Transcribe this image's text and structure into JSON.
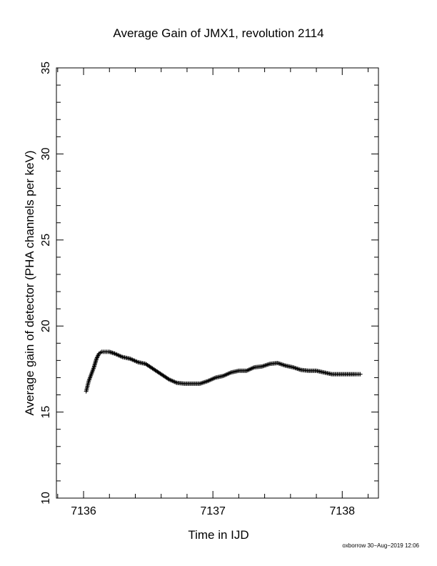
{
  "chart_data": {
    "type": "scatter",
    "title": "Average Gain of JMX1, revolution 2114",
    "xlabel": "Time in IJD",
    "ylabel": "Average gain of detector (PHA channels per keV)",
    "xlim": [
      7135.79,
      7138.28
    ],
    "ylim": [
      10,
      35
    ],
    "x_ticks": [
      "7136",
      "7137",
      "7138"
    ],
    "y_ticks": [
      "10",
      "15",
      "20",
      "25",
      "30",
      "35"
    ],
    "marker": "plus",
    "marker_color": "#000000",
    "grid": false,
    "x": [
      7136.02,
      7136.03,
      7136.04,
      7136.05,
      7136.06,
      7136.07,
      7136.08,
      7136.1,
      7136.12,
      7136.14,
      7136.16,
      7136.18,
      7136.2,
      7136.24,
      7136.3,
      7136.36,
      7136.42,
      7136.48,
      7136.54,
      7136.6,
      7136.66,
      7136.72,
      7136.78,
      7136.84,
      7136.9,
      7136.96,
      7137.02,
      7137.08,
      7137.14,
      7137.2,
      7137.26,
      7137.32,
      7137.38,
      7137.44,
      7137.5,
      7137.56,
      7137.62,
      7137.68,
      7137.74,
      7137.8,
      7137.86,
      7137.92,
      7137.98,
      7138.04,
      7138.1,
      7138.14
    ],
    "y": [
      16.2,
      16.5,
      16.8,
      17.0,
      17.2,
      17.4,
      17.6,
      18.1,
      18.4,
      18.5,
      18.5,
      18.5,
      18.5,
      18.4,
      18.2,
      18.1,
      17.9,
      17.8,
      17.5,
      17.2,
      16.9,
      16.7,
      16.65,
      16.65,
      16.65,
      16.8,
      17.0,
      17.1,
      17.3,
      17.4,
      17.4,
      17.6,
      17.65,
      17.8,
      17.85,
      17.7,
      17.6,
      17.45,
      17.4,
      17.4,
      17.3,
      17.2,
      17.2,
      17.2,
      17.2,
      17.2
    ]
  },
  "footer": "oxborrow 30−Aug−2019 12:06"
}
